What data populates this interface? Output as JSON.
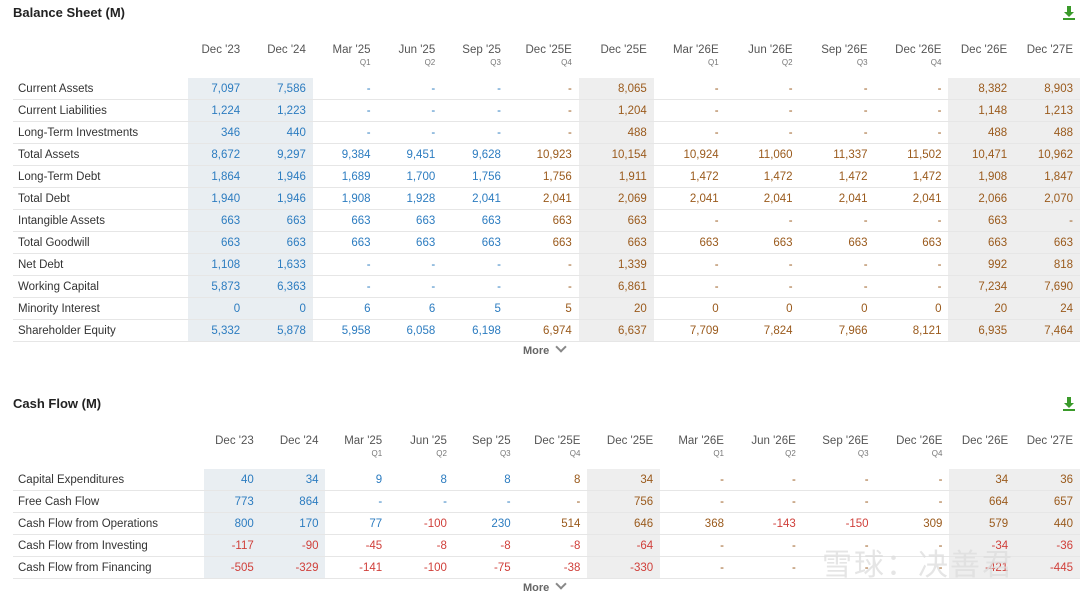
{
  "balance": {
    "title": "Balance Sheet (M)",
    "more": "More",
    "columns": [
      {
        "top": "Dec '23",
        "sub": ""
      },
      {
        "top": "Dec '24",
        "sub": ""
      },
      {
        "top": "Mar '25",
        "sub": "Q1"
      },
      {
        "top": "Jun '25",
        "sub": "Q2"
      },
      {
        "top": "Sep '25",
        "sub": "Q3"
      },
      {
        "top": "Dec '25E",
        "sub": "Q4"
      },
      {
        "top": "Dec '25E",
        "sub": ""
      },
      {
        "top": "Mar '26E",
        "sub": "Q1"
      },
      {
        "top": "Jun '26E",
        "sub": "Q2"
      },
      {
        "top": "Sep '26E",
        "sub": "Q3"
      },
      {
        "top": "Dec '26E",
        "sub": "Q4"
      },
      {
        "top": "Dec '26E",
        "sub": ""
      },
      {
        "top": "Dec '27E",
        "sub": ""
      }
    ],
    "rows": [
      {
        "label": "Current Assets",
        "values": [
          "7,097",
          "7,586",
          "-",
          "-",
          "-",
          "-",
          "8,065",
          "-",
          "-",
          "-",
          "-",
          "8,382",
          "8,903"
        ]
      },
      {
        "label": "Current Liabilities",
        "values": [
          "1,224",
          "1,223",
          "-",
          "-",
          "-",
          "-",
          "1,204",
          "-",
          "-",
          "-",
          "-",
          "1,148",
          "1,213"
        ]
      },
      {
        "label": "Long-Term Investments",
        "values": [
          "346",
          "440",
          "-",
          "-",
          "-",
          "-",
          "488",
          "-",
          "-",
          "-",
          "-",
          "488",
          "488"
        ]
      },
      {
        "label": "Total Assets",
        "values": [
          "8,672",
          "9,297",
          "9,384",
          "9,451",
          "9,628",
          "10,923",
          "10,154",
          "10,924",
          "11,060",
          "11,337",
          "11,502",
          "10,471",
          "10,962"
        ]
      },
      {
        "label": "Long-Term Debt",
        "values": [
          "1,864",
          "1,946",
          "1,689",
          "1,700",
          "1,756",
          "1,756",
          "1,911",
          "1,472",
          "1,472",
          "1,472",
          "1,472",
          "1,908",
          "1,847"
        ]
      },
      {
        "label": "Total Debt",
        "values": [
          "1,940",
          "1,946",
          "1,908",
          "1,928",
          "2,041",
          "2,041",
          "2,069",
          "2,041",
          "2,041",
          "2,041",
          "2,041",
          "2,066",
          "2,070"
        ]
      },
      {
        "label": "Intangible Assets",
        "values": [
          "663",
          "663",
          "663",
          "663",
          "663",
          "663",
          "663",
          "-",
          "-",
          "-",
          "-",
          "663",
          "-"
        ]
      },
      {
        "label": "Total Goodwill",
        "values": [
          "663",
          "663",
          "663",
          "663",
          "663",
          "663",
          "663",
          "663",
          "663",
          "663",
          "663",
          "663",
          "663"
        ]
      },
      {
        "label": "Net Debt",
        "values": [
          "1,108",
          "1,633",
          "-",
          "-",
          "-",
          "-",
          "1,339",
          "-",
          "-",
          "-",
          "-",
          "992",
          "818"
        ]
      },
      {
        "label": "Working Capital",
        "values": [
          "5,873",
          "6,363",
          "-",
          "-",
          "-",
          "-",
          "6,861",
          "-",
          "-",
          "-",
          "-",
          "7,234",
          "7,690"
        ]
      },
      {
        "label": "Minority Interest",
        "values": [
          "0",
          "0",
          "6",
          "6",
          "5",
          "5",
          "20",
          "0",
          "0",
          "0",
          "0",
          "20",
          "24"
        ]
      },
      {
        "label": "Shareholder Equity",
        "values": [
          "5,332",
          "5,878",
          "5,958",
          "6,058",
          "6,198",
          "6,974",
          "6,637",
          "7,709",
          "7,824",
          "7,966",
          "8,121",
          "6,935",
          "7,464"
        ]
      }
    ]
  },
  "cashflow": {
    "title": "Cash Flow (M)",
    "more": "More",
    "columns": [
      {
        "top": "Dec '23",
        "sub": ""
      },
      {
        "top": "Dec '24",
        "sub": ""
      },
      {
        "top": "Mar '25",
        "sub": "Q1"
      },
      {
        "top": "Jun '25",
        "sub": "Q2"
      },
      {
        "top": "Sep '25",
        "sub": "Q3"
      },
      {
        "top": "Dec '25E",
        "sub": "Q4"
      },
      {
        "top": "Dec '25E",
        "sub": ""
      },
      {
        "top": "Mar '26E",
        "sub": "Q1"
      },
      {
        "top": "Jun '26E",
        "sub": "Q2"
      },
      {
        "top": "Sep '26E",
        "sub": "Q3"
      },
      {
        "top": "Dec '26E",
        "sub": "Q4"
      },
      {
        "top": "Dec '26E",
        "sub": ""
      },
      {
        "top": "Dec '27E",
        "sub": ""
      }
    ],
    "rows": [
      {
        "label": "Capital Expenditures",
        "values": [
          "40",
          "34",
          "9",
          "8",
          "8",
          "8",
          "34",
          "-",
          "-",
          "-",
          "-",
          "34",
          "36"
        ]
      },
      {
        "label": "Free Cash Flow",
        "values": [
          "773",
          "864",
          "-",
          "-",
          "-",
          "-",
          "756",
          "-",
          "-",
          "-",
          "-",
          "664",
          "657"
        ]
      },
      {
        "label": "Cash Flow from Operations",
        "values": [
          "800",
          "170",
          "77",
          "-100",
          "230",
          "514",
          "646",
          "368",
          "-143",
          "-150",
          "309",
          "579",
          "440"
        ]
      },
      {
        "label": "Cash Flow from Investing",
        "values": [
          "-117",
          "-90",
          "-45",
          "-8",
          "-8",
          "-8",
          "-64",
          "-",
          "-",
          "-",
          "-",
          "-34",
          "-36"
        ]
      },
      {
        "label": "Cash Flow from Financing",
        "values": [
          "-505",
          "-329",
          "-141",
          "-100",
          "-75",
          "-38",
          "-330",
          "-",
          "-",
          "-",
          "-",
          "-421",
          "-445"
        ]
      }
    ]
  },
  "watermark": "雪球：决善君",
  "icons": {
    "download": "download-icon",
    "more": "chevron-down-icon"
  },
  "colors": {
    "historic": "#2c7cc0",
    "estimate": "#9a5a1c",
    "negative": "#d0403b",
    "download": "#3a9a2a"
  }
}
